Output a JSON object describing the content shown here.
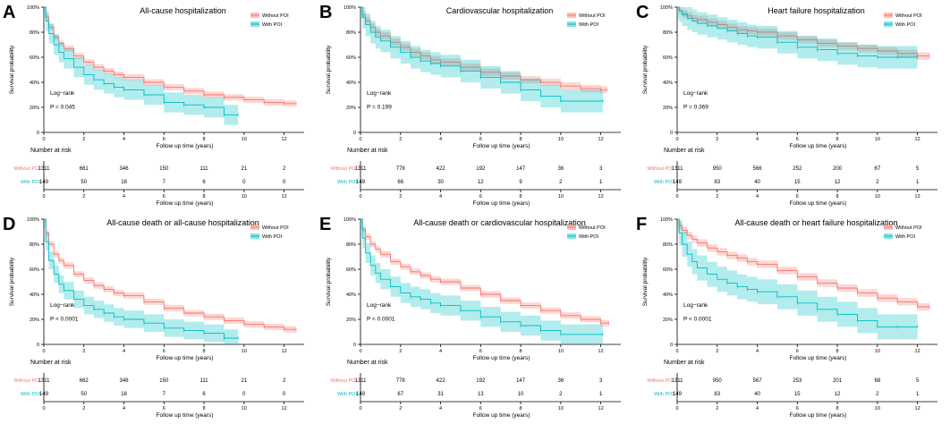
{
  "colors": {
    "without": "#F8766D",
    "with": "#00BFC4",
    "without_band": "#F8766D",
    "with_band": "#00BFC4",
    "axis": "#000000"
  },
  "common": {
    "y_axis_label": "Survival probability",
    "x_axis_label": "Follow up time (years)",
    "number_at_risk_title": "Number at risk",
    "logrank_label": "Log−rank",
    "legend_without": "Without POI",
    "legend_with": "With POI",
    "risk_row_label_without": "Without POI",
    "risk_row_label_with": "With POI",
    "y_ticks": [
      "0",
      "20%",
      "40%",
      "60%",
      "80%",
      "100%"
    ],
    "x_ticks": [
      "0",
      "2",
      "4",
      "6",
      "8",
      "10",
      "12"
    ]
  },
  "chart_data": [
    {
      "type": "line",
      "panel_letter": "A",
      "title": "All-cause hospitalization",
      "xlabel": "Follow up time (years)",
      "ylabel": "Survival probability",
      "xlim": [
        0,
        13
      ],
      "ylim": [
        0,
        1
      ],
      "p_value": "P = 0.045",
      "series": [
        {
          "name": "Without POI",
          "end": 12.6,
          "x": [
            0,
            0.1,
            0.25,
            0.5,
            0.75,
            1,
            1.5,
            2,
            2.5,
            3,
            3.5,
            4,
            5,
            6,
            7,
            8,
            9,
            10,
            11,
            12,
            12.6
          ],
          "y": [
            1.0,
            0.92,
            0.84,
            0.76,
            0.71,
            0.67,
            0.61,
            0.56,
            0.52,
            0.49,
            0.46,
            0.44,
            0.4,
            0.36,
            0.33,
            0.3,
            0.28,
            0.26,
            0.24,
            0.23,
            0.23
          ],
          "band": 0.025
        },
        {
          "name": "With POI",
          "end": 9.7,
          "x": [
            0,
            0.1,
            0.25,
            0.5,
            0.75,
            1,
            1.5,
            2,
            2.5,
            3,
            3.5,
            4,
            5,
            6,
            7,
            8,
            9,
            9.7
          ],
          "y": [
            1.0,
            0.89,
            0.79,
            0.7,
            0.64,
            0.59,
            0.52,
            0.46,
            0.42,
            0.39,
            0.36,
            0.34,
            0.3,
            0.24,
            0.22,
            0.2,
            0.14,
            0.14
          ],
          "band": 0.08
        }
      ],
      "risk_table": {
        "Without POI": [
          1311,
          661,
          346,
          150,
          111,
          21,
          2
        ],
        "With POI": [
          149,
          50,
          18,
          7,
          6,
          0,
          0
        ]
      }
    },
    {
      "type": "line",
      "panel_letter": "B",
      "title": "Cardiovascular hospitalization",
      "xlabel": "Follow up time (years)",
      "ylabel": "Survival probability",
      "xlim": [
        0,
        13
      ],
      "ylim": [
        0,
        1
      ],
      "p_value": "P = 0.199",
      "series": [
        {
          "name": "Without POI",
          "end": 12.3,
          "x": [
            0,
            0.1,
            0.25,
            0.5,
            0.75,
            1,
            1.5,
            2,
            2.5,
            3,
            3.5,
            4,
            5,
            6,
            7,
            8,
            9,
            10,
            11,
            12,
            12.3
          ],
          "y": [
            1.0,
            0.94,
            0.89,
            0.84,
            0.8,
            0.77,
            0.72,
            0.68,
            0.64,
            0.61,
            0.58,
            0.56,
            0.52,
            0.48,
            0.45,
            0.42,
            0.4,
            0.37,
            0.35,
            0.34,
            0.34
          ],
          "band": 0.03
        },
        {
          "name": "With POI",
          "end": 12.1,
          "x": [
            0,
            0.1,
            0.25,
            0.5,
            0.75,
            1,
            1.5,
            2,
            2.5,
            3,
            3.5,
            4,
            5,
            6,
            7,
            8,
            9,
            10,
            12.1
          ],
          "y": [
            1.0,
            0.92,
            0.86,
            0.8,
            0.76,
            0.73,
            0.68,
            0.64,
            0.6,
            0.57,
            0.55,
            0.53,
            0.49,
            0.44,
            0.4,
            0.34,
            0.29,
            0.25,
            0.25
          ],
          "band": 0.09
        }
      ],
      "risk_table": {
        "Without POI": [
          1311,
          778,
          422,
          192,
          147,
          36,
          3
        ],
        "With POI": [
          149,
          66,
          30,
          12,
          9,
          2,
          1
        ]
      }
    },
    {
      "type": "line",
      "panel_letter": "C",
      "title": "Heart failure hospitalization",
      "xlabel": "Follow up time (years)",
      "ylabel": "Survival probability",
      "xlim": [
        0,
        13
      ],
      "ylim": [
        0,
        1
      ],
      "p_value": "P = 0.369",
      "series": [
        {
          "name": "Without POI",
          "end": 12.6,
          "x": [
            0,
            0.1,
            0.25,
            0.5,
            0.75,
            1,
            1.5,
            2,
            2.5,
            3,
            3.5,
            4,
            5,
            6,
            7,
            8,
            9,
            10,
            11,
            12,
            12.6
          ],
          "y": [
            1.0,
            0.97,
            0.95,
            0.93,
            0.91,
            0.9,
            0.88,
            0.86,
            0.84,
            0.82,
            0.81,
            0.8,
            0.77,
            0.74,
            0.71,
            0.69,
            0.67,
            0.65,
            0.63,
            0.61,
            0.61
          ],
          "band": 0.03
        },
        {
          "name": "With POI",
          "end": 12.0,
          "x": [
            0,
            0.1,
            0.25,
            0.5,
            0.75,
            1,
            1.5,
            2,
            2.5,
            3,
            3.5,
            4,
            5,
            6,
            7,
            8,
            9,
            10,
            11,
            12.0
          ],
          "y": [
            1.0,
            0.97,
            0.94,
            0.91,
            0.89,
            0.87,
            0.85,
            0.83,
            0.81,
            0.79,
            0.77,
            0.76,
            0.72,
            0.68,
            0.66,
            0.63,
            0.61,
            0.6,
            0.6,
            0.6
          ],
          "band": 0.09
        }
      ],
      "risk_table": {
        "Without POI": [
          1311,
          950,
          566,
          252,
          200,
          67,
          5
        ],
        "With POI": [
          149,
          83,
          40,
          15,
          12,
          2,
          1
        ]
      }
    },
    {
      "type": "line",
      "panel_letter": "D",
      "title": "All-cause death or all-cause hospitalization",
      "xlabel": "Follow up time (years)",
      "ylabel": "Survival probability",
      "xlim": [
        0,
        13
      ],
      "ylim": [
        0,
        1
      ],
      "p_value": "P < 0.0001",
      "series": [
        {
          "name": "Without POI",
          "end": 12.6,
          "x": [
            0,
            0.1,
            0.25,
            0.5,
            0.75,
            1,
            1.5,
            2,
            2.5,
            3,
            3.5,
            4,
            5,
            6,
            7,
            8,
            9,
            10,
            11,
            12,
            12.6
          ],
          "y": [
            1.0,
            0.89,
            0.8,
            0.72,
            0.67,
            0.63,
            0.56,
            0.51,
            0.47,
            0.44,
            0.41,
            0.39,
            0.34,
            0.29,
            0.25,
            0.22,
            0.19,
            0.16,
            0.14,
            0.12,
            0.12
          ],
          "band": 0.025
        },
        {
          "name": "With POI",
          "end": 9.7,
          "x": [
            0,
            0.1,
            0.25,
            0.5,
            0.75,
            1,
            1.5,
            2,
            2.5,
            3,
            3.5,
            4,
            5,
            6,
            7,
            8,
            9,
            9.7
          ],
          "y": [
            1.0,
            0.82,
            0.67,
            0.56,
            0.48,
            0.43,
            0.36,
            0.31,
            0.28,
            0.25,
            0.22,
            0.2,
            0.17,
            0.13,
            0.11,
            0.09,
            0.05,
            0.05
          ],
          "band": 0.07
        }
      ],
      "risk_table": {
        "Without POI": [
          1311,
          662,
          346,
          150,
          111,
          21,
          2
        ],
        "With POI": [
          149,
          50,
          18,
          7,
          6,
          0,
          0
        ]
      }
    },
    {
      "type": "line",
      "panel_letter": "E",
      "title": "All-cause death or cardiovascular hospitalization",
      "xlabel": "Follow up time (years)",
      "ylabel": "Survival probability",
      "xlim": [
        0,
        13
      ],
      "ylim": [
        0,
        1
      ],
      "p_value": "P < 0.0001",
      "series": [
        {
          "name": "Without POI",
          "end": 12.4,
          "x": [
            0,
            0.1,
            0.25,
            0.5,
            0.75,
            1,
            1.5,
            2,
            2.5,
            3,
            3.5,
            4,
            5,
            6,
            7,
            8,
            9,
            10,
            11,
            12,
            12.4
          ],
          "y": [
            1.0,
            0.92,
            0.86,
            0.8,
            0.76,
            0.72,
            0.66,
            0.62,
            0.58,
            0.55,
            0.52,
            0.5,
            0.45,
            0.4,
            0.35,
            0.31,
            0.27,
            0.23,
            0.2,
            0.17,
            0.17
          ],
          "band": 0.025
        },
        {
          "name": "With POI",
          "end": 12.1,
          "x": [
            0,
            0.1,
            0.25,
            0.5,
            0.75,
            1,
            1.5,
            2,
            2.5,
            3,
            3.5,
            4,
            5,
            6,
            7,
            8,
            9,
            10,
            12.1
          ],
          "y": [
            1.0,
            0.85,
            0.73,
            0.63,
            0.57,
            0.52,
            0.46,
            0.41,
            0.38,
            0.36,
            0.33,
            0.31,
            0.27,
            0.22,
            0.18,
            0.15,
            0.11,
            0.08,
            0.08
          ],
          "band": 0.08
        }
      ],
      "risk_table": {
        "Without POI": [
          1311,
          778,
          422,
          192,
          147,
          36,
          3
        ],
        "With POI": [
          149,
          67,
          31,
          13,
          10,
          2,
          1
        ]
      }
    },
    {
      "type": "line",
      "panel_letter": "F",
      "title": "All-cause death or heart failure hospitalization",
      "xlabel": "Follow up time (years)",
      "ylabel": "Survival probability",
      "xlim": [
        0,
        13
      ],
      "ylim": [
        0,
        1
      ],
      "p_value": "P < 0.0001",
      "series": [
        {
          "name": "Without POI",
          "end": 12.6,
          "x": [
            0,
            0.1,
            0.25,
            0.5,
            0.75,
            1,
            1.5,
            2,
            2.5,
            3,
            3.5,
            4,
            5,
            6,
            7,
            8,
            9,
            10,
            11,
            12,
            12.6
          ],
          "y": [
            1.0,
            0.95,
            0.91,
            0.87,
            0.84,
            0.81,
            0.77,
            0.74,
            0.71,
            0.69,
            0.66,
            0.64,
            0.59,
            0.54,
            0.49,
            0.45,
            0.41,
            0.37,
            0.34,
            0.3,
            0.3
          ],
          "band": 0.03
        },
        {
          "name": "With POI",
          "end": 12.0,
          "x": [
            0,
            0.1,
            0.25,
            0.5,
            0.75,
            1,
            1.5,
            2,
            2.5,
            3,
            3.5,
            4,
            5,
            6,
            7,
            8,
            9,
            10,
            11,
            12.0
          ],
          "y": [
            1.0,
            0.89,
            0.8,
            0.72,
            0.66,
            0.61,
            0.56,
            0.52,
            0.49,
            0.46,
            0.44,
            0.42,
            0.38,
            0.33,
            0.28,
            0.24,
            0.19,
            0.14,
            0.14,
            0.14
          ],
          "band": 0.1
        }
      ],
      "risk_table": {
        "Without POI": [
          1311,
          950,
          567,
          253,
          201,
          68,
          5
        ],
        "With POI": [
          149,
          83,
          40,
          15,
          12,
          2,
          1
        ]
      }
    }
  ]
}
